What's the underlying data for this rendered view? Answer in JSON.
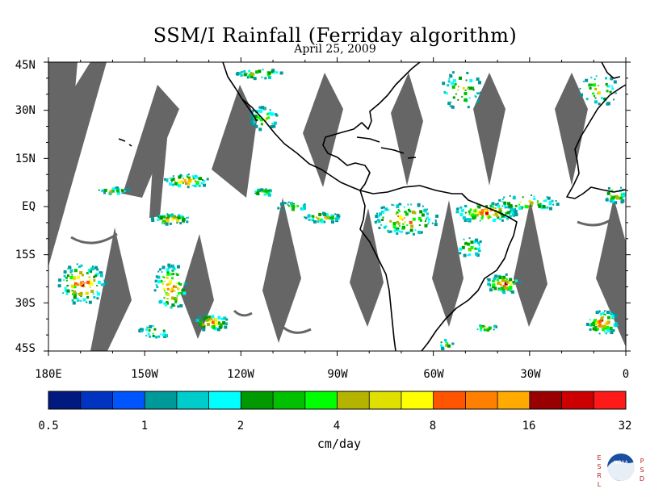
{
  "title": "SSM/I Rainfall (Ferriday algorithm)",
  "subtitle": "April 25, 2009",
  "map": {
    "projection": "equirectangular",
    "extent": {
      "lon": [
        -180,
        0
      ],
      "lat": [
        -45,
        45
      ]
    },
    "background": "#ffffff",
    "no_data_color": "#666666",
    "coastline_color": "#000000",
    "y_tick_labels": [
      "45N",
      "30N",
      "15N",
      "EQ",
      "15S",
      "30S",
      "45S"
    ],
    "x_tick_labels": [
      "180E",
      "150W",
      "120W",
      "90W",
      "60W",
      "30W",
      "0"
    ]
  },
  "colorbar": {
    "units": "cm/day",
    "tick_labels": [
      "0.5",
      "1",
      "2",
      "4",
      "8",
      "16",
      "32"
    ],
    "colors": [
      "#001a80",
      "#0033c0",
      "#0055ff",
      "#009999",
      "#00cccc",
      "#00ffff",
      "#009900",
      "#00c000",
      "#00ff00",
      "#b3b300",
      "#e0e000",
      "#ffff00",
      "#ff5500",
      "#ff7f00",
      "#ffaa00",
      "#990000",
      "#cc0000",
      "#ff1a1a"
    ]
  },
  "logo": {
    "emblem_text": "NOAA",
    "left_letters": [
      "E",
      "S",
      "R",
      "L"
    ],
    "right_letters": [
      "P",
      "S",
      "D"
    ]
  }
}
